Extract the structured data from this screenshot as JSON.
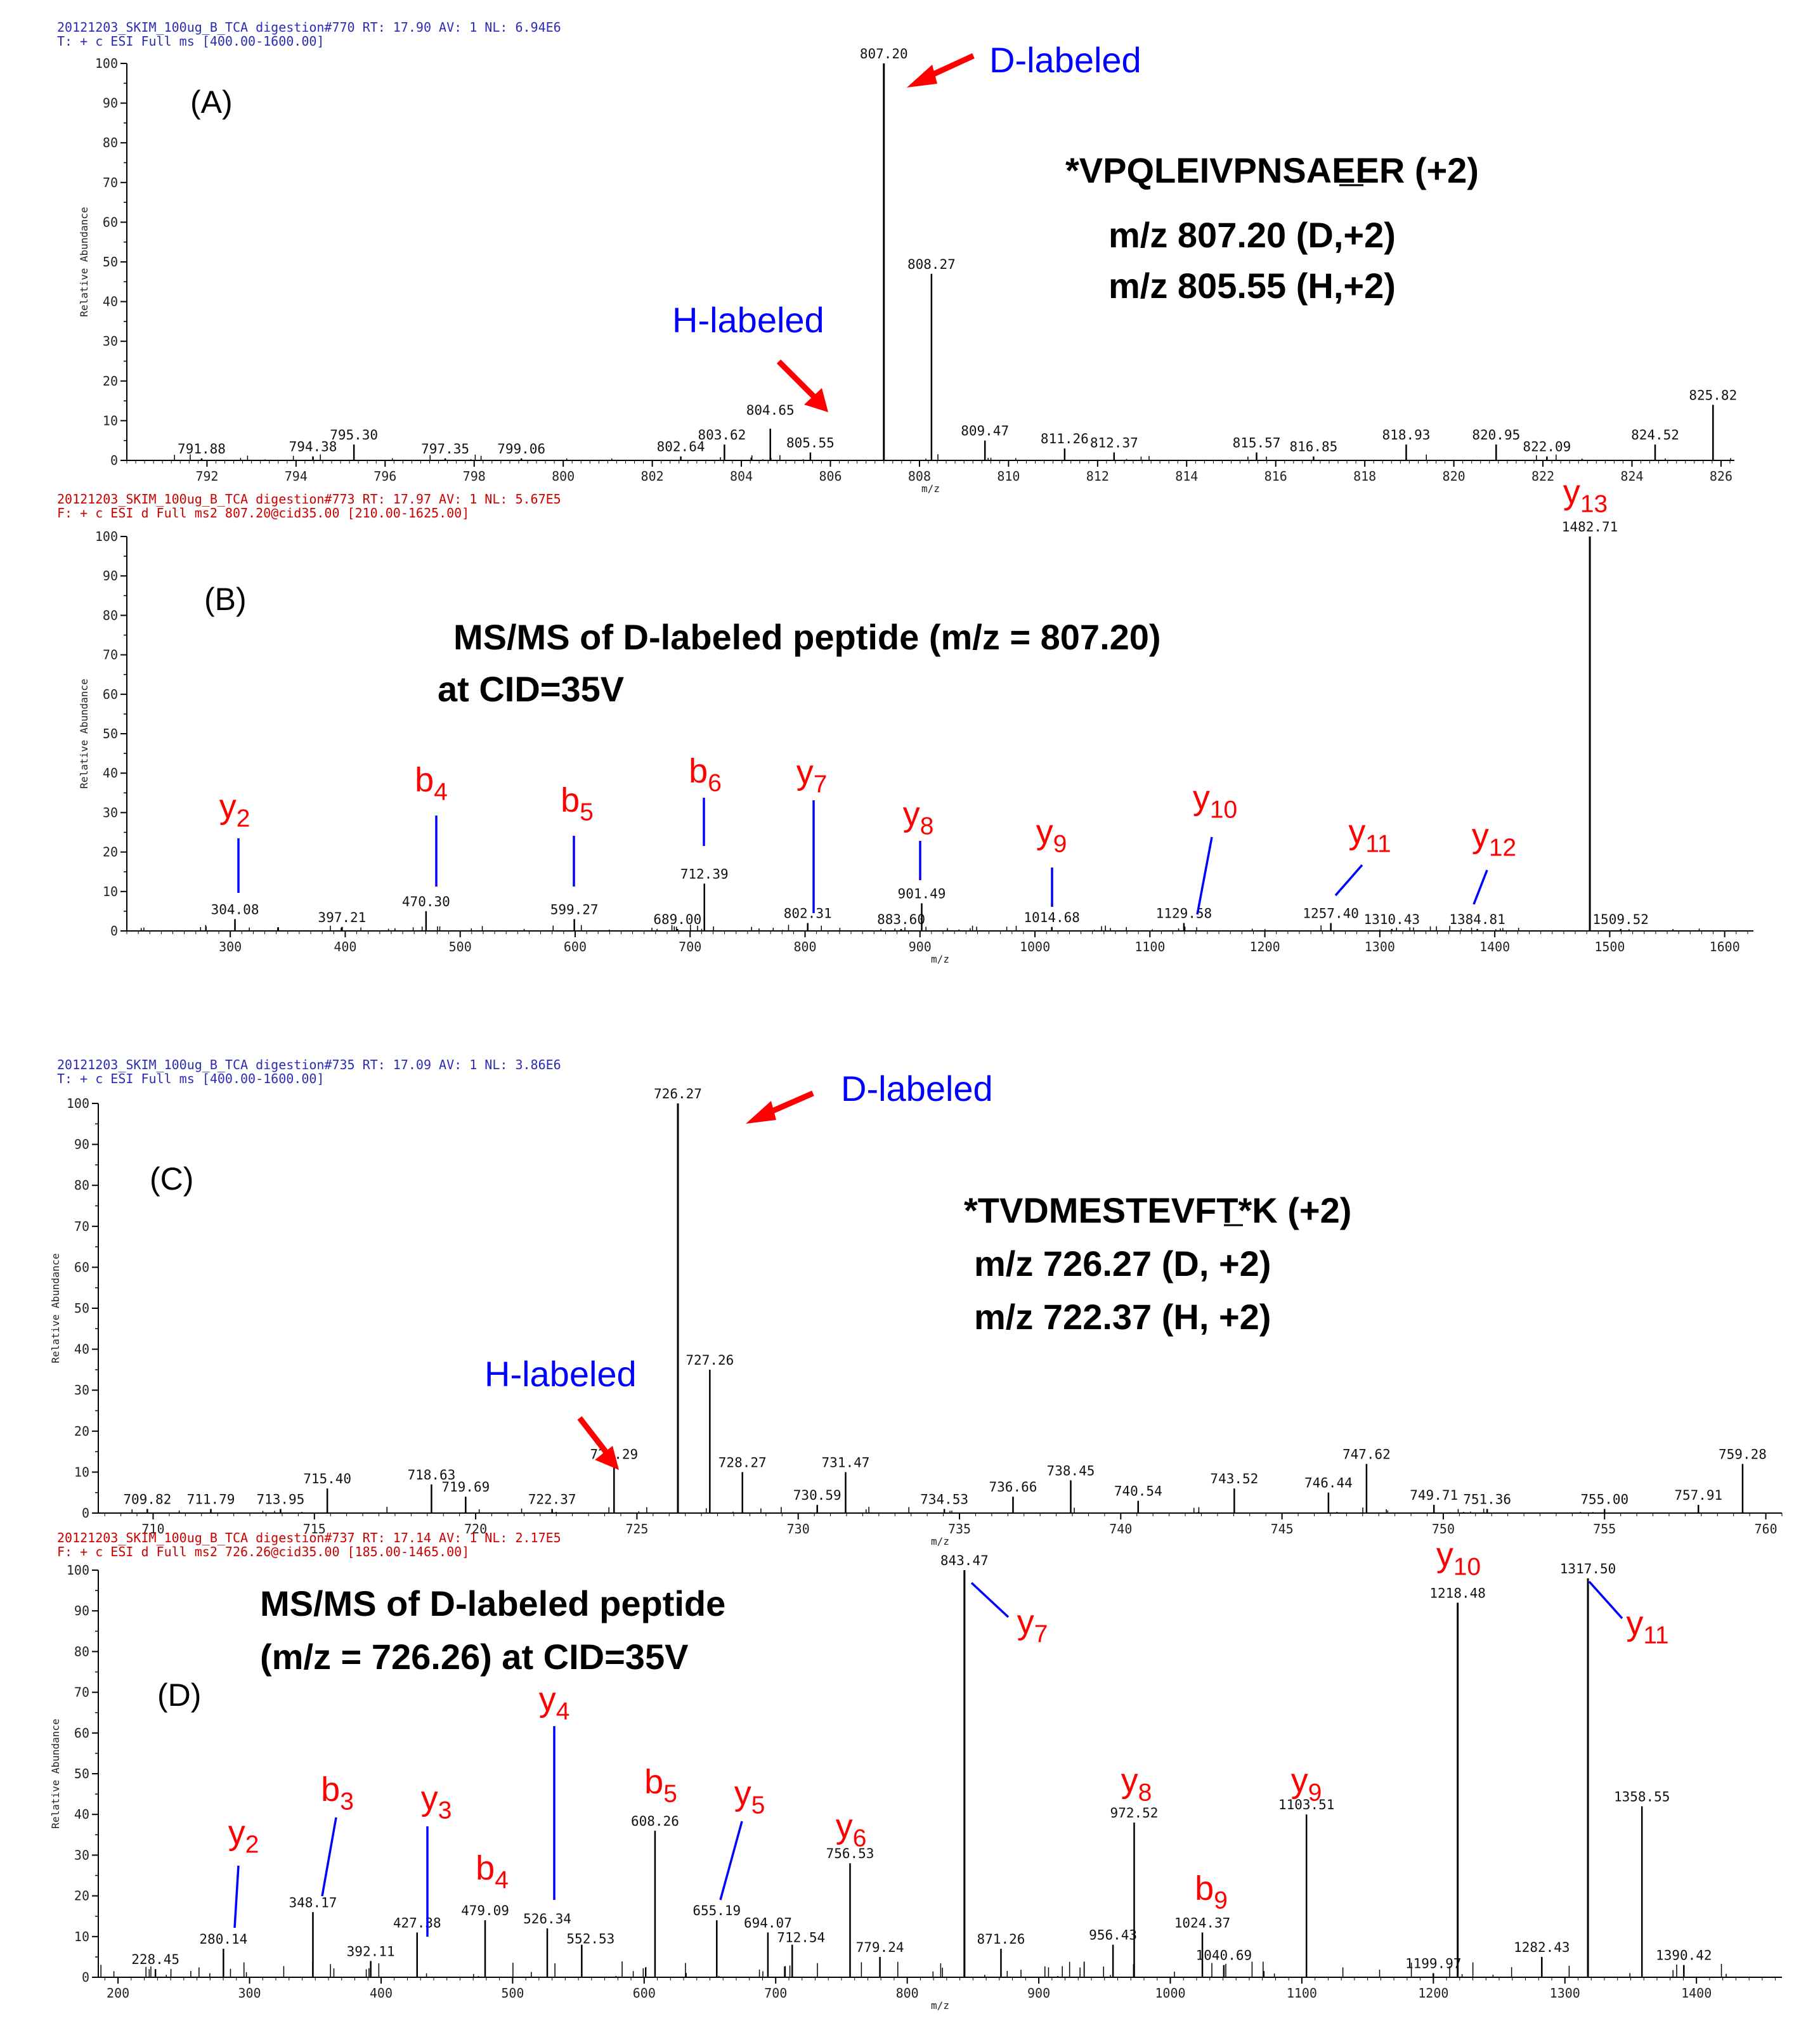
{
  "colors": {
    "ion_label": "#ff0000",
    "connector": "#0000ff",
    "arrow": "#ff0000",
    "peak": "#000000",
    "header_full_ms": "#2b2bb8",
    "header_ms2": "#cc0000"
  },
  "chart_data": [
    {
      "type": "bar",
      "panel": "(A)",
      "header_line1": "20121203_SKIM_100ug_B_TCA digestion#770  RT: 17.90  AV: 1  NL: 6.94E6",
      "header_line2": "T: + c ESI Full ms [400.00-1600.00]",
      "xlabel": "m/z",
      "ylabel": "Relative Abundance",
      "xlim": [
        790.2,
        826.3
      ],
      "ylim": [
        0,
        100
      ],
      "xticks": [
        792,
        794,
        796,
        798,
        800,
        802,
        804,
        806,
        808,
        810,
        812,
        814,
        816,
        818,
        820,
        822,
        824,
        826
      ],
      "yticks": [
        0,
        10,
        20,
        30,
        40,
        50,
        60,
        70,
        80,
        90,
        100
      ],
      "peaks": [
        {
          "mz": 791.88,
          "intensity": 0.5,
          "label": "791.88"
        },
        {
          "mz": 794.38,
          "intensity": 1,
          "label": "794.38"
        },
        {
          "mz": 795.3,
          "intensity": 4,
          "label": "795.30"
        },
        {
          "mz": 797.35,
          "intensity": 0.5,
          "label": "797.35"
        },
        {
          "mz": 799.06,
          "intensity": 0.5,
          "label": "799.06"
        },
        {
          "mz": 802.64,
          "intensity": 1,
          "label": "802.64"
        },
        {
          "mz": 803.62,
          "intensity": 4,
          "label": "803.62"
        },
        {
          "mz": 804.65,
          "intensity": 8,
          "label": "804.65"
        },
        {
          "mz": 805.55,
          "intensity": 2,
          "label": "805.55"
        },
        {
          "mz": 807.2,
          "intensity": 100,
          "label": "807.20"
        },
        {
          "mz": 808.27,
          "intensity": 47,
          "label": "808.27"
        },
        {
          "mz": 809.47,
          "intensity": 5,
          "label": "809.47"
        },
        {
          "mz": 811.26,
          "intensity": 3,
          "label": "811.26"
        },
        {
          "mz": 812.37,
          "intensity": 2,
          "label": "812.37"
        },
        {
          "mz": 815.57,
          "intensity": 2,
          "label": "815.57"
        },
        {
          "mz": 816.85,
          "intensity": 1,
          "label": "816.85"
        },
        {
          "mz": 818.93,
          "intensity": 4,
          "label": "818.93"
        },
        {
          "mz": 820.95,
          "intensity": 4,
          "label": "820.95"
        },
        {
          "mz": 822.09,
          "intensity": 1,
          "label": "822.09"
        },
        {
          "mz": 824.52,
          "intensity": 4,
          "label": "824.52"
        },
        {
          "mz": 825.82,
          "intensity": 14,
          "label": "825.82"
        }
      ],
      "annotations": {
        "d_labeled": "D-labeled",
        "h_labeled": "H-labeled",
        "peptide": "*VPQLEIVPNSAEER (+2)",
        "mz_d": "m/z 807.20 (D,+2)",
        "mz_h": "m/z 805.55 (H,+2)"
      }
    },
    {
      "type": "bar",
      "panel": "(B)",
      "header_line1": "20121203_SKIM_100ug_B_TCA digestion#773  RT: 17.97  AV: 1  NL: 5.67E5",
      "header_line2": "F: + c ESI d Full ms2 807.20@cid35.00 [210.00-1625.00]",
      "xlabel": "m/z",
      "ylabel": "Relative Abundance",
      "xlim": [
        210,
        1625
      ],
      "ylim": [
        0,
        100
      ],
      "xticks": [
        300,
        400,
        500,
        600,
        700,
        800,
        900,
        1000,
        1100,
        1200,
        1300,
        1400,
        1500,
        1600
      ],
      "yticks": [
        0,
        10,
        20,
        30,
        40,
        50,
        60,
        70,
        80,
        90,
        100
      ],
      "peaks": [
        {
          "mz": 304.08,
          "intensity": 3,
          "label": "304.08"
        },
        {
          "mz": 397.21,
          "intensity": 1,
          "label": "397.21"
        },
        {
          "mz": 470.3,
          "intensity": 5,
          "label": "470.30"
        },
        {
          "mz": 599.27,
          "intensity": 3,
          "label": "599.27"
        },
        {
          "mz": 689.0,
          "intensity": 0.5,
          "label": "689.00"
        },
        {
          "mz": 712.39,
          "intensity": 12,
          "label": "712.39"
        },
        {
          "mz": 802.31,
          "intensity": 2,
          "label": "802.31"
        },
        {
          "mz": 883.6,
          "intensity": 0.5,
          "label": "883.60"
        },
        {
          "mz": 901.49,
          "intensity": 7,
          "label": "901.49"
        },
        {
          "mz": 1014.68,
          "intensity": 1,
          "label": "1014.68"
        },
        {
          "mz": 1129.58,
          "intensity": 2,
          "label": "1129.58"
        },
        {
          "mz": 1257.4,
          "intensity": 2,
          "label": "1257.40"
        },
        {
          "mz": 1310.43,
          "intensity": 0.5,
          "label": "1310.43"
        },
        {
          "mz": 1384.81,
          "intensity": 0.5,
          "label": "1384.81"
        },
        {
          "mz": 1482.71,
          "intensity": 100,
          "label": "1482.71"
        },
        {
          "mz": 1509.52,
          "intensity": 0.5,
          "label": "1509.52"
        }
      ],
      "ions": [
        {
          "sub": "2",
          "mz": 304.08,
          "top": 25,
          "bottom": 10
        },
        {
          "sub": "4",
          "mz": 470.3,
          "top": 30,
          "bottom": 10
        },
        {
          "sub": "5",
          "mz": 599.27,
          "top": 24,
          "bottom": 12
        },
        {
          "sub": "6",
          "mz": 712.39,
          "top": 34,
          "bottom": 21
        },
        {
          "sub": "7",
          "mz": 802.31,
          "top": 33,
          "bottom": 5
        },
        {
          "sub": "8",
          "mz": 901.49,
          "top": 23,
          "bottom": 12
        },
        {
          "sub": "9",
          "mz": 1014.68,
          "top": 16,
          "bottom": 6
        },
        {
          "sub": "10",
          "mz": 1129.58,
          "top": 23,
          "bottom": 2
        },
        {
          "sub": "11",
          "mz": 1257.4,
          "top": 17,
          "bottom": 8
        },
        {
          "sub": "12",
          "mz": 1384.81,
          "top": 15,
          "bottom": 6
        }
      ],
      "ion_letters": [
        "y",
        "b",
        "b",
        "b",
        "y",
        "y",
        "y",
        "y",
        "y",
        "y"
      ],
      "top_ion": {
        "letter": "y",
        "sub": "13"
      },
      "annotations": {
        "title_l1": "MS/MS of D-labeled peptide (m/z = 807.20)",
        "title_l2": "at CID=35V"
      }
    },
    {
      "type": "bar",
      "panel": "(C)",
      "header_line1": "20121203_SKIM_100ug_B_TCA digestion#735  RT: 17.09  AV: 1  NL: 3.86E6",
      "header_line2": "T: + c ESI Full ms [400.00-1600.00]",
      "xlabel": "m/z",
      "ylabel": "Relative Abundance",
      "xlim": [
        708.3,
        760.5
      ],
      "ylim": [
        0,
        100
      ],
      "xticks": [
        710,
        715,
        720,
        725,
        730,
        735,
        740,
        745,
        750,
        755,
        760
      ],
      "yticks": [
        0,
        10,
        20,
        30,
        40,
        50,
        60,
        70,
        80,
        90,
        100
      ],
      "peaks": [
        {
          "mz": 709.82,
          "intensity": 1,
          "label": "709.82"
        },
        {
          "mz": 711.79,
          "intensity": 1,
          "label": "711.79"
        },
        {
          "mz": 713.95,
          "intensity": 1,
          "label": "713.95"
        },
        {
          "mz": 715.4,
          "intensity": 6,
          "label": "715.40"
        },
        {
          "mz": 718.63,
          "intensity": 7,
          "label": "718.63"
        },
        {
          "mz": 719.69,
          "intensity": 4,
          "label": "719.69"
        },
        {
          "mz": 722.37,
          "intensity": 1,
          "label": "722.37"
        },
        {
          "mz": 724.29,
          "intensity": 12,
          "label": "724.29"
        },
        {
          "mz": 726.27,
          "intensity": 100,
          "label": "726.27"
        },
        {
          "mz": 727.26,
          "intensity": 35,
          "label": "727.26"
        },
        {
          "mz": 728.27,
          "intensity": 10,
          "label": "728.27"
        },
        {
          "mz": 730.59,
          "intensity": 2,
          "label": "730.59"
        },
        {
          "mz": 731.47,
          "intensity": 10,
          "label": "731.47"
        },
        {
          "mz": 734.53,
          "intensity": 1,
          "label": "734.53"
        },
        {
          "mz": 736.66,
          "intensity": 4,
          "label": "736.66"
        },
        {
          "mz": 738.45,
          "intensity": 8,
          "label": "738.45"
        },
        {
          "mz": 740.54,
          "intensity": 3,
          "label": "740.54"
        },
        {
          "mz": 743.52,
          "intensity": 6,
          "label": "743.52"
        },
        {
          "mz": 746.44,
          "intensity": 5,
          "label": "746.44"
        },
        {
          "mz": 747.62,
          "intensity": 12,
          "label": "747.62"
        },
        {
          "mz": 749.71,
          "intensity": 2,
          "label": "749.71"
        },
        {
          "mz": 751.36,
          "intensity": 1,
          "label": "751.36"
        },
        {
          "mz": 755.0,
          "intensity": 1,
          "label": "755.00"
        },
        {
          "mz": 757.91,
          "intensity": 2,
          "label": "757.91"
        },
        {
          "mz": 759.28,
          "intensity": 12,
          "label": "759.28"
        }
      ],
      "annotations": {
        "d_labeled": "D-labeled",
        "h_labeled": "H-labeled",
        "peptide": "*TVDMESTEVFT*K (+2)",
        "mz_d": "m/z 726.27 (D, +2)",
        "mz_h": "m/z 722.37 (H, +2)"
      }
    },
    {
      "type": "bar",
      "panel": "(D)",
      "header_line1": "20121203_SKIM_100ug_B_TCA digestion#737  RT: 17.14  AV: 1  NL: 2.17E5",
      "header_line2": "F: + c ESI d Full ms2 726.26@cid35.00 [185.00-1465.00]",
      "xlabel": "m/z",
      "ylabel": "Relative Abundance",
      "xlim": [
        185,
        1465
      ],
      "ylim": [
        0,
        100
      ],
      "xticks": [
        200,
        300,
        400,
        500,
        600,
        700,
        800,
        900,
        1000,
        1100,
        1200,
        1300,
        1400
      ],
      "yticks": [
        0,
        10,
        20,
        30,
        40,
        50,
        60,
        70,
        80,
        90,
        100
      ],
      "peaks": [
        {
          "mz": 228.45,
          "intensity": 2,
          "label": "228.45"
        },
        {
          "mz": 280.14,
          "intensity": 7,
          "label": "280.14"
        },
        {
          "mz": 348.17,
          "intensity": 16,
          "label": "348.17"
        },
        {
          "mz": 392.11,
          "intensity": 4,
          "label": "392.11"
        },
        {
          "mz": 427.38,
          "intensity": 11,
          "label": "427.38"
        },
        {
          "mz": 479.09,
          "intensity": 14,
          "label": "479.09"
        },
        {
          "mz": 526.34,
          "intensity": 12,
          "label": "526.34"
        },
        {
          "mz": 552.53,
          "intensity": 8,
          "label": "552.53"
        },
        {
          "mz": 608.26,
          "intensity": 36,
          "label": "608.26"
        },
        {
          "mz": 655.19,
          "intensity": 14,
          "label": "655.19"
        },
        {
          "mz": 694.07,
          "intensity": 11,
          "label": "694.07"
        },
        {
          "mz": 712.54,
          "intensity": 8,
          "label": "712.54"
        },
        {
          "mz": 756.53,
          "intensity": 28,
          "label": "756.53"
        },
        {
          "mz": 779.24,
          "intensity": 5,
          "label": "779.24"
        },
        {
          "mz": 843.47,
          "intensity": 100,
          "label": "843.47"
        },
        {
          "mz": 871.26,
          "intensity": 7,
          "label": "871.26"
        },
        {
          "mz": 956.43,
          "intensity": 8,
          "label": "956.43"
        },
        {
          "mz": 972.52,
          "intensity": 38,
          "label": "972.52"
        },
        {
          "mz": 1024.37,
          "intensity": 11,
          "label": "1024.37"
        },
        {
          "mz": 1040.69,
          "intensity": 3,
          "label": "1040.69"
        },
        {
          "mz": 1103.51,
          "intensity": 40,
          "label": "1103.51"
        },
        {
          "mz": 1199.97,
          "intensity": 1,
          "label": "1199.97"
        },
        {
          "mz": 1218.48,
          "intensity": 92,
          "label": "1218.48"
        },
        {
          "mz": 1282.43,
          "intensity": 5,
          "label": "1282.43"
        },
        {
          "mz": 1317.5,
          "intensity": 98,
          "label": "1317.50"
        },
        {
          "mz": 1358.55,
          "intensity": 42,
          "label": "1358.55"
        },
        {
          "mz": 1390.42,
          "intensity": 3,
          "label": "1390.42"
        }
      ],
      "ions": [
        {
          "sub": "2",
          "mz": 280.14,
          "top": 34,
          "bottom": 14
        },
        {
          "sub": "3",
          "mz": 348.17,
          "top": 39,
          "bottom": 20
        },
        {
          "sub": "3",
          "mz": 427.38,
          "top": 38,
          "bottom": 14
        },
        {
          "sub": "4",
          "mz": 479.09,
          "top": 0,
          "bottom": 0
        },
        {
          "sub": "4",
          "mz": 526.34,
          "top": 62,
          "bottom": 18
        },
        {
          "sub": "5",
          "mz": 608.26,
          "top": 0,
          "bottom": 0
        },
        {
          "sub": "5",
          "mz": 655.19,
          "top": 37,
          "bottom": 18
        },
        {
          "sub": "6",
          "mz": 756.53,
          "top": 0,
          "bottom": 0
        },
        {
          "sub": "7",
          "mz": 843.47,
          "top": 97,
          "bottom": 90
        },
        {
          "sub": "8",
          "mz": 972.52,
          "top": 0,
          "bottom": 0
        },
        {
          "sub": "9",
          "mz": 1024.37,
          "top": 0,
          "bottom": 0
        },
        {
          "sub": "9",
          "mz": 1103.51,
          "top": 0,
          "bottom": 0
        },
        {
          "sub": "10",
          "mz": 1218.48,
          "top": 0,
          "bottom": 0
        },
        {
          "sub": "11",
          "mz": 1317.5,
          "top": 97,
          "bottom": 90
        }
      ],
      "ion_letters": [
        "y",
        "b",
        "y",
        "b",
        "y",
        "b",
        "y",
        "y",
        "y",
        "y",
        "b",
        "y",
        "y",
        "y"
      ],
      "annotations": {
        "title_l1": "MS/MS of D-labeled peptide",
        "title_l2": "(m/z = 726.26) at CID=35V"
      }
    }
  ]
}
